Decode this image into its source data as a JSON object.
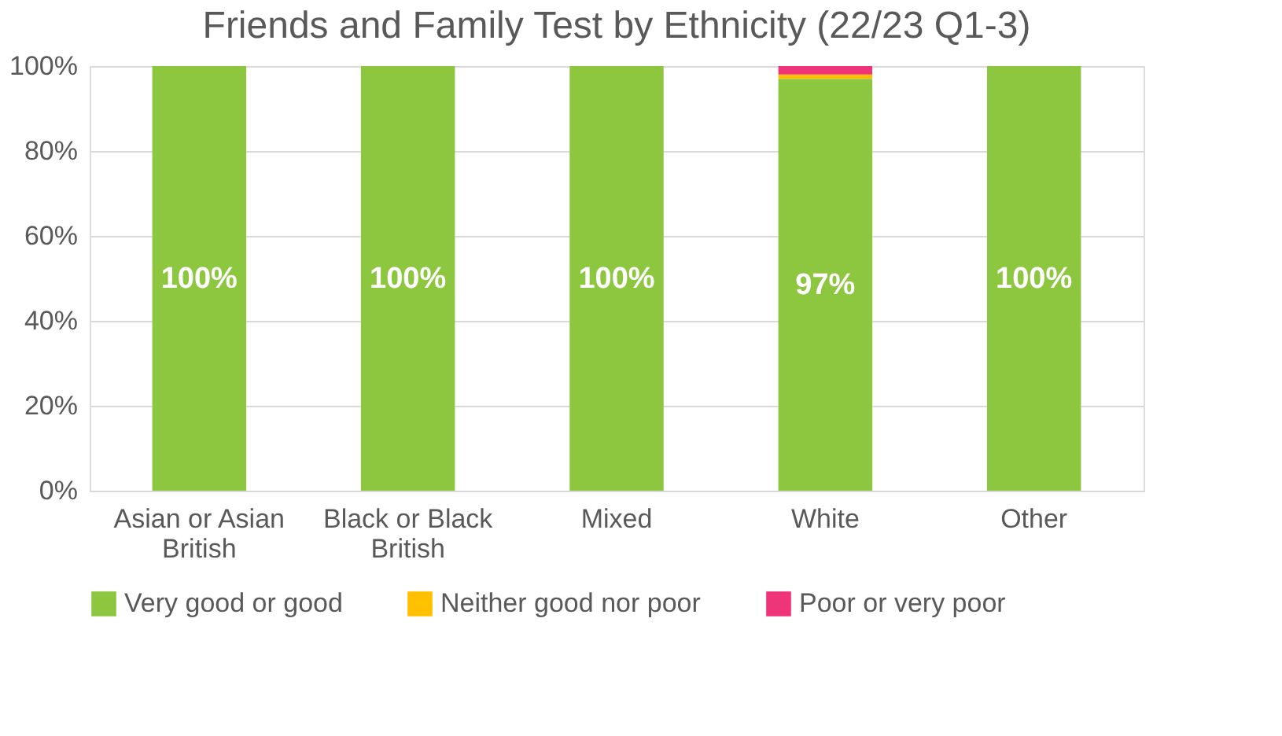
{
  "chart_data": {
    "type": "bar",
    "title": "Friends and Family Test by Ethnicity (22/23 Q1-3)",
    "categories": [
      "Asian or Asian British",
      "Black or Black British",
      "Mixed",
      "White",
      "Other"
    ],
    "stacked": true,
    "series": [
      {
        "name": "Very good or good",
        "color": "#8dc63f",
        "values": [
          100,
          100,
          100,
          97,
          100
        ],
        "value_labels": [
          "100%",
          "100%",
          "100%",
          "97%",
          "100%"
        ]
      },
      {
        "name": "Neither good nor poor",
        "color": "#ffc000",
        "values": [
          0,
          0,
          0,
          1,
          0
        ]
      },
      {
        "name": "Poor or very poor",
        "color": "#f0347a",
        "values": [
          0,
          0,
          0,
          2,
          0
        ]
      }
    ],
    "ylim": [
      0,
      100
    ],
    "yticks": [
      {
        "value": 0,
        "label": "0%"
      },
      {
        "value": 20,
        "label": "20%"
      },
      {
        "value": 40,
        "label": "40%"
      },
      {
        "value": 60,
        "label": "60%"
      },
      {
        "value": 80,
        "label": "80%"
      },
      {
        "value": 100,
        "label": "100%"
      }
    ],
    "grid": "y",
    "legend": "bottom"
  }
}
